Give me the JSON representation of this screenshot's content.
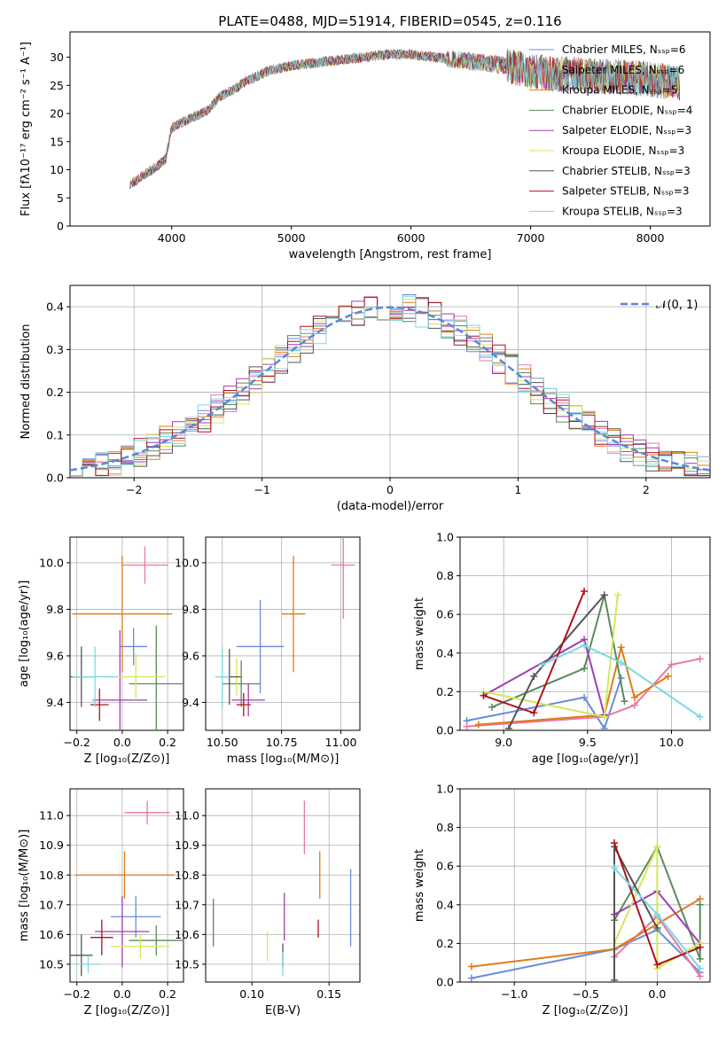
{
  "title": "PLATE=0488, MJD=51914, FIBERID=0545, z=0.116",
  "chart_data": [
    {
      "id": "spectrum",
      "type": "line",
      "xlabel": "wavelength [Angstrom, rest frame]",
      "ylabel": "Flux [fλ10⁻¹⁷ erg cm⁻² s⁻¹ A⁻¹]",
      "xlim": [
        3150,
        8500
      ],
      "ylim": [
        0,
        34.5
      ],
      "xticks": [
        4000,
        5000,
        6000,
        7000,
        8000
      ],
      "yticks": [
        0,
        5,
        10,
        15,
        20,
        25,
        30
      ],
      "grid": false,
      "legend_position": "right",
      "continuum": {
        "x": [
          3650,
          3700,
          3800,
          3900,
          3950,
          4000,
          4100,
          4200,
          4300,
          4400,
          4500,
          4600,
          4800,
          5000,
          5200,
          5400,
          5600,
          5800,
          6000,
          6200,
          6400,
          6600,
          6800,
          7000,
          7200,
          7400,
          7600,
          7800,
          8000,
          8250
        ],
        "y": [
          7.5,
          8.0,
          9.5,
          11.0,
          12.0,
          17.5,
          18.5,
          19.5,
          20.5,
          23.0,
          24.0,
          25.5,
          27.5,
          28.5,
          29.0,
          29.5,
          30.0,
          30.5,
          30.5,
          30.0,
          29.5,
          29.0,
          28.5,
          27.5,
          27.0,
          27.0,
          26.5,
          26.5,
          26.0,
          25.5
        ]
      },
      "series": [
        {
          "name": "Chabrier MILES, N_SSP=6",
          "color": "#6b8bd9"
        },
        {
          "name": "Salpeter MILES, N_SSP=6",
          "color": "#e877a6"
        },
        {
          "name": "Kroupa MILES, N_SSP=5",
          "color": "#e07b1a"
        },
        {
          "name": "Chabrier ELODIE, N_SSP=4",
          "color": "#5c8a5c"
        },
        {
          "name": "Salpeter ELODIE, N_SSP=3",
          "color": "#a23db3"
        },
        {
          "name": "Kroupa ELODIE, N_SSP=3",
          "color": "#d4e85a"
        },
        {
          "name": "Chabrier STELIB, N_SSP=3",
          "color": "#555555"
        },
        {
          "name": "Salpeter STELIB, N_SSP=3",
          "color": "#b0121c"
        },
        {
          "name": "Kroupa STELIB, N_SSP=3",
          "color": "#7dd8e0"
        }
      ]
    },
    {
      "id": "residuals",
      "type": "histogram",
      "xlabel": "(data-model)/error",
      "ylabel": "Normed distribution",
      "xlim": [
        -2.5,
        2.5
      ],
      "ylim": [
        0,
        0.45
      ],
      "xticks": [
        -2,
        -1,
        0,
        1,
        2
      ],
      "yticks": [
        0.0,
        0.1,
        0.2,
        0.3,
        0.4
      ],
      "grid": true,
      "legend": "𝒩(0, 1)",
      "legend_position": "top-right",
      "bin_width": 0.1,
      "normal_curve": {
        "mean": 0,
        "sigma": 1
      }
    },
    {
      "id": "age_vs_Z",
      "type": "errorbar",
      "xlabel": "Z [log₁₀(Z/Z⊙)]",
      "ylabel": "age  [log₁₀(age/yr)]",
      "xlim": [
        -0.23,
        0.27
      ],
      "ylim": [
        9.28,
        10.11
      ],
      "xticks": [
        -0.2,
        0.0,
        0.2
      ],
      "yticks": [
        9.4,
        9.6,
        9.8,
        10.0
      ],
      "grid": true,
      "points": [
        {
          "color": "#6b8bd9",
          "x": 0.05,
          "xerr": 0.06,
          "y": 9.64,
          "yerr": 0.08
        },
        {
          "color": "#e877a6",
          "x": 0.1,
          "xerr": 0.1,
          "y": 9.99,
          "yerr": 0.08
        },
        {
          "color": "#e07b1a",
          "x": 0.0,
          "xerr": 0.22,
          "y": 9.78,
          "yerr": 0.25
        },
        {
          "color": "#5c8a5c",
          "x": 0.15,
          "xerr": 0.12,
          "y": 9.48,
          "yerr": 0.25
        },
        {
          "color": "#a23db3",
          "x": -0.01,
          "xerr": 0.12,
          "y": 9.41,
          "yerr": 0.3
        },
        {
          "color": "#d4e85a",
          "x": 0.06,
          "xerr": 0.13,
          "y": 9.51,
          "yerr": 0.1
        },
        {
          "color": "#555555",
          "x": -0.18,
          "xerr": 0.05,
          "y": 9.51,
          "yerr": 0.13
        },
        {
          "color": "#b0121c",
          "x": -0.1,
          "xerr": 0.04,
          "y": 9.39,
          "yerr": 0.07
        },
        {
          "color": "#7dd8e0",
          "x": -0.12,
          "xerr": 0.1,
          "y": 9.51,
          "yerr": 0.13
        }
      ]
    },
    {
      "id": "age_vs_mass",
      "type": "errorbar",
      "xlabel": "mass [log₁₀(M/M⊙)]",
      "ylabel": "",
      "xlim": [
        10.43,
        11.08
      ],
      "ylim": [
        9.28,
        10.11
      ],
      "xticks": [
        10.5,
        10.75,
        11.0
      ],
      "yticks": [
        9.4,
        9.6,
        9.8,
        10.0
      ],
      "grid": true,
      "points": [
        {
          "color": "#6b8bd9",
          "x": 10.66,
          "xerr": 0.1,
          "y": 9.64,
          "yerr": 0.2
        },
        {
          "color": "#e877a6",
          "x": 11.01,
          "xerr": 0.05,
          "y": 9.99,
          "yerr": 0.23
        },
        {
          "color": "#e07b1a",
          "x": 10.8,
          "xerr": 0.05,
          "y": 9.78,
          "yerr": 0.25
        },
        {
          "color": "#5c8a5c",
          "x": 10.58,
          "xerr": 0.08,
          "y": 9.48,
          "yerr": 0.1
        },
        {
          "color": "#a23db3",
          "x": 10.61,
          "xerr": 0.07,
          "y": 9.41,
          "yerr": 0.07
        },
        {
          "color": "#d4e85a",
          "x": 10.56,
          "xerr": 0.03,
          "y": 9.51,
          "yerr": 0.08
        },
        {
          "color": "#555555",
          "x": 10.53,
          "xerr": 0.05,
          "y": 9.51,
          "yerr": 0.12
        },
        {
          "color": "#b0121c",
          "x": 10.59,
          "xerr": 0.03,
          "y": 9.39,
          "yerr": 0.05
        },
        {
          "color": "#7dd8e0",
          "x": 10.5,
          "xerr": 0.03,
          "y": 9.51,
          "yerr": 0.13
        }
      ]
    },
    {
      "id": "mass_weight_vs_age",
      "type": "line",
      "xlabel": "age  [log₁₀(age/yr)]",
      "ylabel": "mass weight",
      "xlim": [
        8.74,
        10.23
      ],
      "ylim": [
        0,
        1.0
      ],
      "xticks": [
        9.0,
        9.5,
        10.0
      ],
      "yticks": [
        0.0,
        0.2,
        0.4,
        0.6,
        0.8,
        1.0
      ],
      "grid": true,
      "series": [
        {
          "color": "#6b8bd9",
          "x": [
            8.78,
            9.48,
            9.6,
            9.7
          ],
          "y": [
            0.05,
            0.17,
            0.01,
            0.27
          ]
        },
        {
          "color": "#e877a6",
          "x": [
            8.78,
            9.6,
            9.78,
            10.0,
            10.17
          ],
          "y": [
            0.02,
            0.07,
            0.13,
            0.34,
            0.37
          ]
        },
        {
          "color": "#e07b1a",
          "x": [
            8.85,
            9.6,
            9.7,
            9.78,
            9.98
          ],
          "y": [
            0.03,
            0.08,
            0.43,
            0.17,
            0.28
          ]
        },
        {
          "color": "#5c8a5c",
          "x": [
            8.93,
            9.48,
            9.6,
            9.72
          ],
          "y": [
            0.12,
            0.32,
            0.7,
            0.15
          ]
        },
        {
          "color": "#a23db3",
          "x": [
            8.88,
            9.48,
            9.6
          ],
          "y": [
            0.18,
            0.47,
            0.08
          ]
        },
        {
          "color": "#d4e85a",
          "x": [
            8.88,
            9.6,
            9.68
          ],
          "y": [
            0.2,
            0.07,
            0.7
          ]
        },
        {
          "color": "#555555",
          "x": [
            9.03,
            9.18,
            9.6
          ],
          "y": [
            0.01,
            0.28,
            0.7
          ]
        },
        {
          "color": "#b0121c",
          "x": [
            8.88,
            9.18,
            9.48
          ],
          "y": [
            0.18,
            0.09,
            0.72
          ]
        },
        {
          "color": "#7dd8e0",
          "x": [
            9.23,
            9.48,
            9.7,
            10.17
          ],
          "y": [
            0.34,
            0.44,
            0.35,
            0.07
          ]
        }
      ]
    },
    {
      "id": "mass_vs_Z",
      "type": "errorbar",
      "xlabel": "Z [log₁₀(Z/Z⊙)]",
      "ylabel": "mass [log₁₀(M/M⊙)]",
      "xlim": [
        -0.23,
        0.27
      ],
      "ylim": [
        10.44,
        11.09
      ],
      "xticks": [
        -0.2,
        0.0,
        0.2
      ],
      "yticks": [
        10.5,
        10.6,
        10.7,
        10.8,
        10.9,
        11.0
      ],
      "grid": true,
      "points": [
        {
          "color": "#6b8bd9",
          "x": 0.06,
          "xerr": 0.11,
          "y": 10.66,
          "yerr": 0.07
        },
        {
          "color": "#e877a6",
          "x": 0.11,
          "xerr": 0.1,
          "y": 11.01,
          "yerr": 0.04
        },
        {
          "color": "#e07b1a",
          "x": 0.01,
          "xerr": 0.22,
          "y": 10.8,
          "yerr": 0.08
        },
        {
          "color": "#5c8a5c",
          "x": 0.15,
          "xerr": 0.12,
          "y": 10.58,
          "yerr": 0.05
        },
        {
          "color": "#a23db3",
          "x": 0.0,
          "xerr": 0.12,
          "y": 10.61,
          "yerr": 0.12
        },
        {
          "color": "#d4e85a",
          "x": 0.08,
          "xerr": 0.13,
          "y": 10.56,
          "yerr": 0.04
        },
        {
          "color": "#555555",
          "x": -0.18,
          "xerr": 0.05,
          "y": 10.53,
          "yerr": 0.07
        },
        {
          "color": "#b0121c",
          "x": -0.09,
          "xerr": 0.05,
          "y": 10.59,
          "yerr": 0.06
        },
        {
          "color": "#7dd8e0",
          "x": -0.15,
          "xerr": 0.06,
          "y": 10.5,
          "yerr": 0.03
        }
      ]
    },
    {
      "id": "mass_vs_ebv",
      "type": "errorbar",
      "xlabel": "E(B-V)",
      "ylabel": "",
      "xlim": [
        0.07,
        0.17
      ],
      "ylim": [
        10.44,
        11.09
      ],
      "xticks": [
        0.1,
        0.15
      ],
      "yticks": [
        10.5,
        10.6,
        10.7,
        10.8,
        10.9,
        11.0
      ],
      "grid": true,
      "points": [
        {
          "color": "#6b8bd9",
          "x": 0.164,
          "xerr": 0,
          "y": 10.69,
          "yerr": 0.13
        },
        {
          "color": "#e877a6",
          "x": 0.134,
          "xerr": 0,
          "y": 10.96,
          "yerr": 0.09
        },
        {
          "color": "#e07b1a",
          "x": 0.144,
          "xerr": 0,
          "y": 10.8,
          "yerr": 0.08
        },
        {
          "color": "#5c8a5c",
          "x": 0.075,
          "xerr": 0,
          "y": 10.64,
          "yerr": 0.08
        },
        {
          "color": "#a23db3",
          "x": 0.121,
          "xerr": 0,
          "y": 10.66,
          "yerr": 0.08
        },
        {
          "color": "#d4e85a",
          "x": 0.11,
          "xerr": 0,
          "y": 10.56,
          "yerr": 0.05
        },
        {
          "color": "#555555",
          "x": 0.12,
          "xerr": 0,
          "y": 10.53,
          "yerr": 0.04
        },
        {
          "color": "#b0121c",
          "x": 0.143,
          "xerr": 0,
          "y": 10.62,
          "yerr": 0.03
        },
        {
          "color": "#7dd8e0",
          "x": 0.12,
          "xerr": 0,
          "y": 10.5,
          "yerr": 0.04
        }
      ]
    },
    {
      "id": "mass_weight_vs_Z",
      "type": "line",
      "xlabel": "Z [log₁₀(Z/Z⊙)]",
      "ylabel": "mass weight",
      "xlim": [
        -1.38,
        0.37
      ],
      "ylim": [
        0,
        1.0
      ],
      "xticks": [
        -1.0,
        -0.5,
        0.0
      ],
      "yticks": [
        0.0,
        0.2,
        0.4,
        0.6,
        0.8,
        1.0
      ],
      "grid": true,
      "series": [
        {
          "color": "#6b8bd9",
          "x": [
            -1.3,
            -0.3,
            0.0,
            0.3
          ],
          "y": [
            0.02,
            0.17,
            0.27,
            0.05
          ]
        },
        {
          "color": "#e877a6",
          "x": [
            -0.3,
            0.0,
            0.3
          ],
          "y": [
            0.13,
            0.34,
            0.03
          ]
        },
        {
          "color": "#e07b1a",
          "x": [
            -1.3,
            -0.3,
            0.3
          ],
          "y": [
            0.08,
            0.17,
            0.43
          ]
        },
        {
          "color": "#5c8a5c",
          "x": [
            -0.3,
            0.0,
            0.3,
            0.3
          ],
          "y": [
            0.32,
            0.7,
            0.12,
            0.4
          ]
        },
        {
          "color": "#a23db3",
          "x": [
            -0.3,
            0.0,
            0.3
          ],
          "y": [
            0.35,
            0.47,
            0.2
          ]
        },
        {
          "color": "#d4e85a",
          "x": [
            -0.3,
            0.0,
            0.0,
            0.3
          ],
          "y": [
            0.2,
            0.7,
            0.07,
            0.2
          ]
        },
        {
          "color": "#555555",
          "x": [
            -0.3,
            -0.3,
            0.0
          ],
          "y": [
            0.01,
            0.7,
            0.28
          ]
        },
        {
          "color": "#b0121c",
          "x": [
            -0.3,
            0.0,
            0.3
          ],
          "y": [
            0.72,
            0.09,
            0.18
          ]
        },
        {
          "color": "#7dd8e0",
          "x": [
            -0.3,
            0.0,
            0.3
          ],
          "y": [
            0.59,
            0.35,
            0.07
          ]
        }
      ]
    }
  ]
}
